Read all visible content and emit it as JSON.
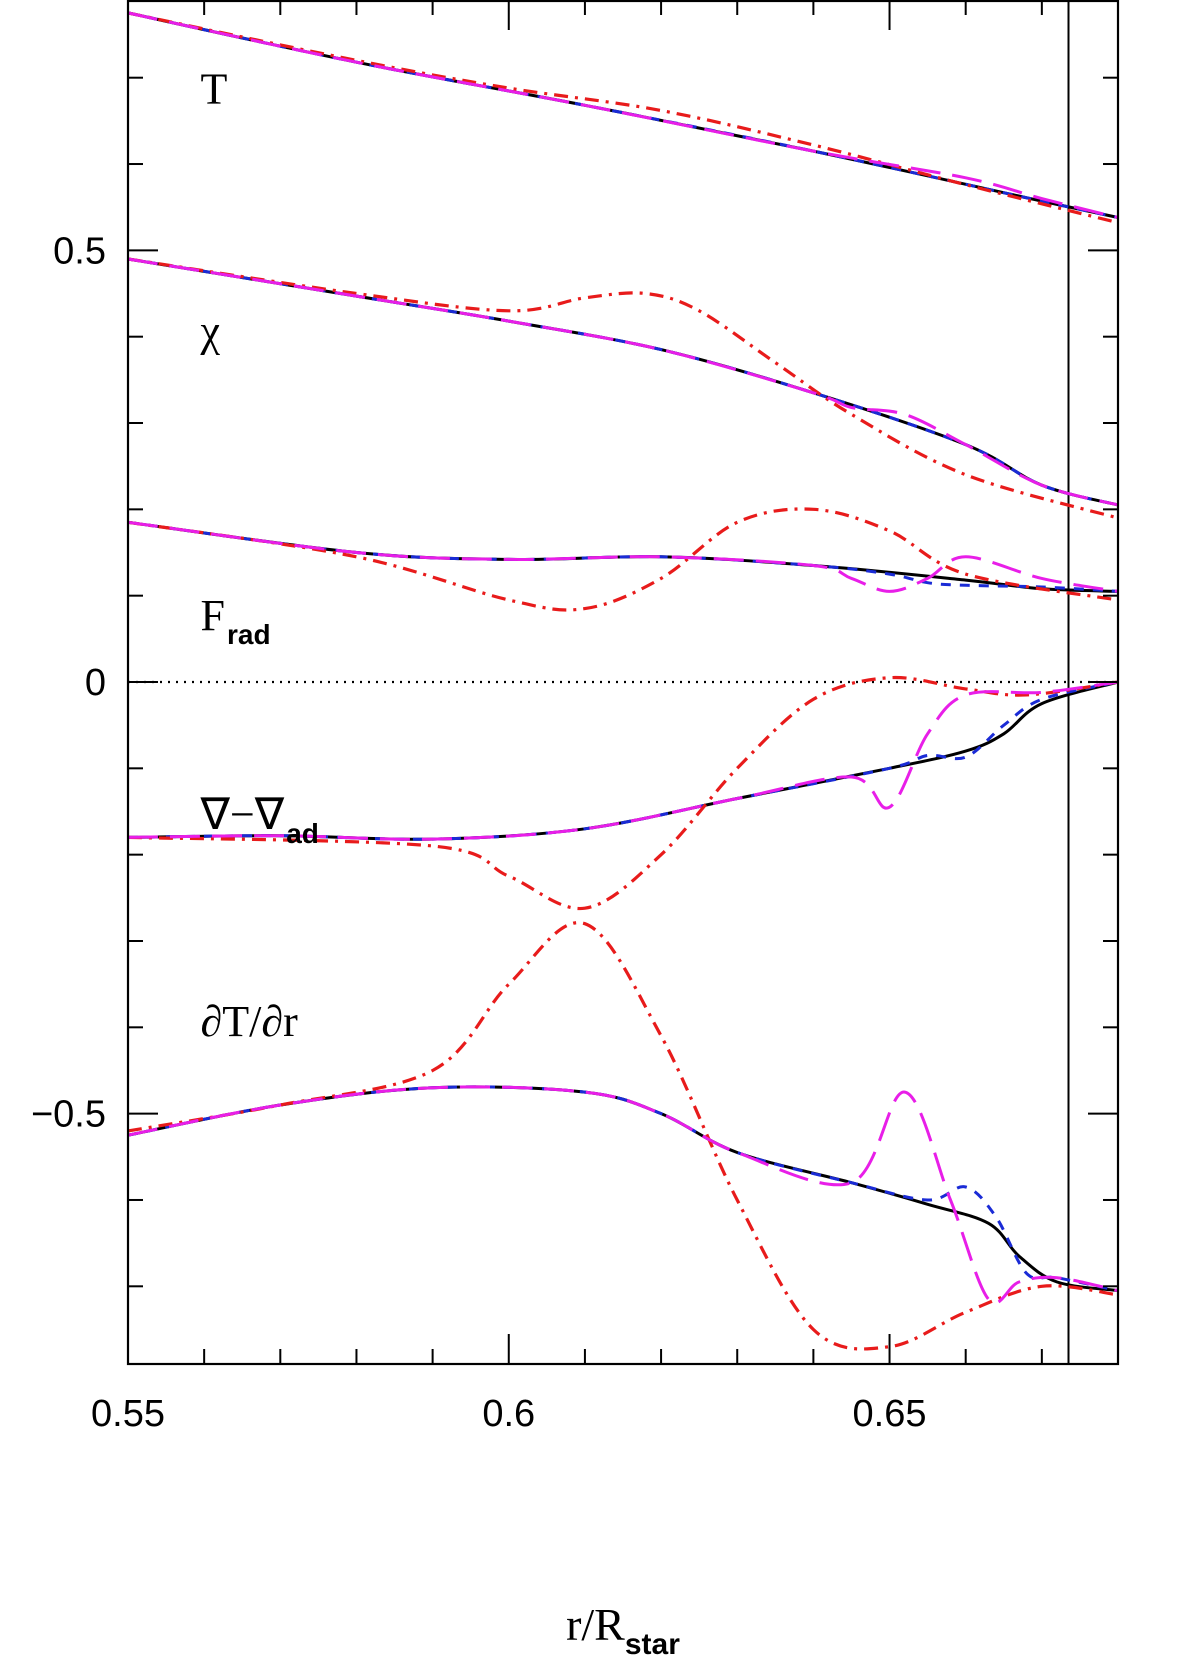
{
  "chart_data": {
    "type": "line",
    "xlabel": "r/R",
    "xlabel_sub": "star",
    "ylabel": "",
    "xlim": [
      0.55,
      0.68
    ],
    "ylim": [
      -0.79,
      0.79
    ],
    "x_ticks": [
      "0.55",
      "0.6",
      "0.65"
    ],
    "y_ticks": [
      "−0.5",
      "0",
      "0.5"
    ],
    "zero_line": {
      "y": 0,
      "style": "dotted"
    },
    "reference_line": {
      "x": 0.6735,
      "style": "solid"
    },
    "colors": {
      "solid": "#000000",
      "short_dash": "#1a2bd6",
      "long_dash": "#e81ee8",
      "dash_dot": "#e81b1b"
    },
    "labels": [
      {
        "text": "T",
        "sub": "",
        "x": 0.559,
        "y": 0.67
      },
      {
        "text": "χ",
        "sub": "",
        "x": 0.559,
        "y": 0.39
      },
      {
        "text": "F",
        "sub": "rad",
        "x": 0.559,
        "y": 0.06
      },
      {
        "text": "∇−∇",
        "sub": "ad",
        "x": 0.559,
        "y": -0.17
      },
      {
        "text": "∂T/∂r",
        "sub": "",
        "x": 0.559,
        "y": -0.41
      }
    ],
    "groups": [
      {
        "label": "T",
        "series": [
          {
            "style": "solid",
            "x": [
              0.55,
              0.58,
              0.61,
              0.64,
              0.67,
              0.68
            ],
            "y": [
              0.775,
              0.718,
              0.668,
              0.615,
              0.557,
              0.538
            ]
          },
          {
            "style": "short_dash",
            "x": [
              0.55,
              0.58,
              0.61,
              0.64,
              0.67,
              0.68
            ],
            "y": [
              0.775,
              0.718,
              0.668,
              0.615,
              0.557,
              0.538
            ]
          },
          {
            "style": "long_dash",
            "x": [
              0.55,
              0.58,
              0.61,
              0.64,
              0.66,
              0.67,
              0.68
            ],
            "y": [
              0.775,
              0.718,
              0.668,
              0.615,
              0.584,
              0.56,
              0.538
            ]
          },
          {
            "style": "dash_dot",
            "x": [
              0.55,
              0.58,
              0.6,
              0.62,
              0.64,
              0.66,
              0.68
            ],
            "y": [
              0.775,
              0.72,
              0.688,
              0.662,
              0.622,
              0.576,
              0.532
            ]
          }
        ]
      },
      {
        "label": "χ",
        "series": [
          {
            "style": "solid",
            "x": [
              0.55,
              0.58,
              0.6,
              0.62,
              0.64,
              0.66,
              0.67,
              0.68
            ],
            "y": [
              0.49,
              0.447,
              0.418,
              0.385,
              0.335,
              0.275,
              0.228,
              0.205
            ]
          },
          {
            "style": "short_dash",
            "x": [
              0.55,
              0.58,
              0.6,
              0.62,
              0.64,
              0.66,
              0.67,
              0.68
            ],
            "y": [
              0.49,
              0.447,
              0.418,
              0.385,
              0.335,
              0.275,
              0.228,
              0.205
            ]
          },
          {
            "style": "long_dash",
            "x": [
              0.55,
              0.58,
              0.6,
              0.62,
              0.64,
              0.645,
              0.652,
              0.66,
              0.67,
              0.68
            ],
            "y": [
              0.49,
              0.447,
              0.418,
              0.385,
              0.335,
              0.318,
              0.31,
              0.275,
              0.228,
              0.205
            ]
          },
          {
            "style": "dash_dot",
            "x": [
              0.55,
              0.58,
              0.6,
              0.61,
              0.618,
              0.625,
              0.635,
              0.645,
              0.66,
              0.68
            ],
            "y": [
              0.49,
              0.45,
              0.43,
              0.445,
              0.45,
              0.43,
              0.37,
              0.31,
              0.24,
              0.19
            ]
          }
        ]
      },
      {
        "label": "F_rad",
        "series": [
          {
            "style": "solid",
            "x": [
              0.55,
              0.58,
              0.6,
              0.62,
              0.64,
              0.66,
              0.67,
              0.68
            ],
            "y": [
              0.185,
              0.15,
              0.142,
              0.145,
              0.135,
              0.118,
              0.108,
              0.105
            ]
          },
          {
            "style": "short_dash",
            "x": [
              0.55,
              0.58,
              0.6,
              0.62,
              0.64,
              0.65,
              0.655,
              0.66,
              0.67,
              0.68
            ],
            "y": [
              0.185,
              0.15,
              0.142,
              0.145,
              0.135,
              0.125,
              0.115,
              0.112,
              0.11,
              0.105
            ]
          },
          {
            "style": "long_dash",
            "x": [
              0.55,
              0.58,
              0.6,
              0.62,
              0.64,
              0.645,
              0.65,
              0.655,
              0.66,
              0.67,
              0.68
            ],
            "y": [
              0.185,
              0.15,
              0.142,
              0.145,
              0.135,
              0.12,
              0.105,
              0.12,
              0.145,
              0.12,
              0.105
            ]
          },
          {
            "style": "dash_dot",
            "x": [
              0.55,
              0.58,
              0.6,
              0.61,
              0.62,
              0.63,
              0.64,
              0.65,
              0.66,
              0.68
            ],
            "y": [
              0.185,
              0.145,
              0.095,
              0.085,
              0.12,
              0.185,
              0.2,
              0.175,
              0.125,
              0.095
            ]
          }
        ]
      },
      {
        "label": "∇−∇_ad",
        "series": [
          {
            "style": "solid",
            "x": [
              0.55,
              0.57,
              0.59,
              0.61,
              0.63,
              0.65,
              0.66,
              0.665,
              0.67,
              0.68
            ],
            "y": [
              -0.18,
              -0.178,
              -0.182,
              -0.17,
              -0.135,
              -0.1,
              -0.08,
              -0.06,
              -0.025,
              0.0
            ]
          },
          {
            "style": "short_dash",
            "x": [
              0.55,
              0.57,
              0.59,
              0.61,
              0.63,
              0.65,
              0.655,
              0.66,
              0.665,
              0.67,
              0.68
            ],
            "y": [
              -0.18,
              -0.178,
              -0.182,
              -0.17,
              -0.135,
              -0.1,
              -0.085,
              -0.087,
              -0.05,
              -0.02,
              0.0
            ]
          },
          {
            "style": "long_dash",
            "x": [
              0.55,
              0.57,
              0.59,
              0.61,
              0.63,
              0.645,
              0.65,
              0.655,
              0.66,
              0.67,
              0.68
            ],
            "y": [
              -0.18,
              -0.178,
              -0.182,
              -0.17,
              -0.135,
              -0.11,
              -0.145,
              -0.06,
              -0.015,
              -0.012,
              0.0
            ]
          },
          {
            "style": "dash_dot",
            "x": [
              0.55,
              0.59,
              0.6,
              0.61,
              0.62,
              0.63,
              0.64,
              0.65,
              0.66,
              0.668,
              0.68
            ],
            "y": [
              -0.18,
              -0.19,
              -0.225,
              -0.262,
              -0.2,
              -0.1,
              -0.02,
              0.005,
              -0.008,
              -0.015,
              0.0
            ]
          }
        ]
      },
      {
        "label": "∂T/∂r",
        "series": [
          {
            "style": "solid",
            "x": [
              0.55,
              0.57,
              0.59,
              0.61,
              0.62,
              0.63,
              0.645,
              0.655,
              0.663,
              0.667,
              0.672,
              0.68
            ],
            "y": [
              -0.525,
              -0.49,
              -0.47,
              -0.475,
              -0.5,
              -0.545,
              -0.58,
              -0.605,
              -0.627,
              -0.665,
              -0.695,
              -0.705
            ]
          },
          {
            "style": "short_dash",
            "x": [
              0.55,
              0.57,
              0.59,
              0.61,
              0.62,
              0.63,
              0.645,
              0.655,
              0.66,
              0.664,
              0.668,
              0.672,
              0.68
            ],
            "y": [
              -0.525,
              -0.49,
              -0.47,
              -0.475,
              -0.5,
              -0.545,
              -0.58,
              -0.6,
              -0.585,
              -0.62,
              -0.685,
              -0.69,
              -0.705
            ]
          },
          {
            "style": "long_dash",
            "x": [
              0.55,
              0.57,
              0.59,
              0.61,
              0.62,
              0.63,
              0.645,
              0.652,
              0.658,
              0.663,
              0.667,
              0.672,
              0.68
            ],
            "y": [
              -0.525,
              -0.49,
              -0.47,
              -0.475,
              -0.5,
              -0.545,
              -0.58,
              -0.475,
              -0.6,
              -0.715,
              -0.695,
              -0.69,
              -0.705
            ]
          },
          {
            "style": "dash_dot",
            "x": [
              0.55,
              0.57,
              0.59,
              0.6,
              0.61,
              0.62,
              0.63,
              0.64,
              0.65,
              0.66,
              0.67,
              0.68
            ],
            "y": [
              -0.52,
              -0.49,
              -0.45,
              -0.35,
              -0.28,
              -0.41,
              -0.6,
              -0.75,
              -0.77,
              -0.73,
              -0.7,
              -0.71
            ]
          }
        ]
      }
    ]
  }
}
